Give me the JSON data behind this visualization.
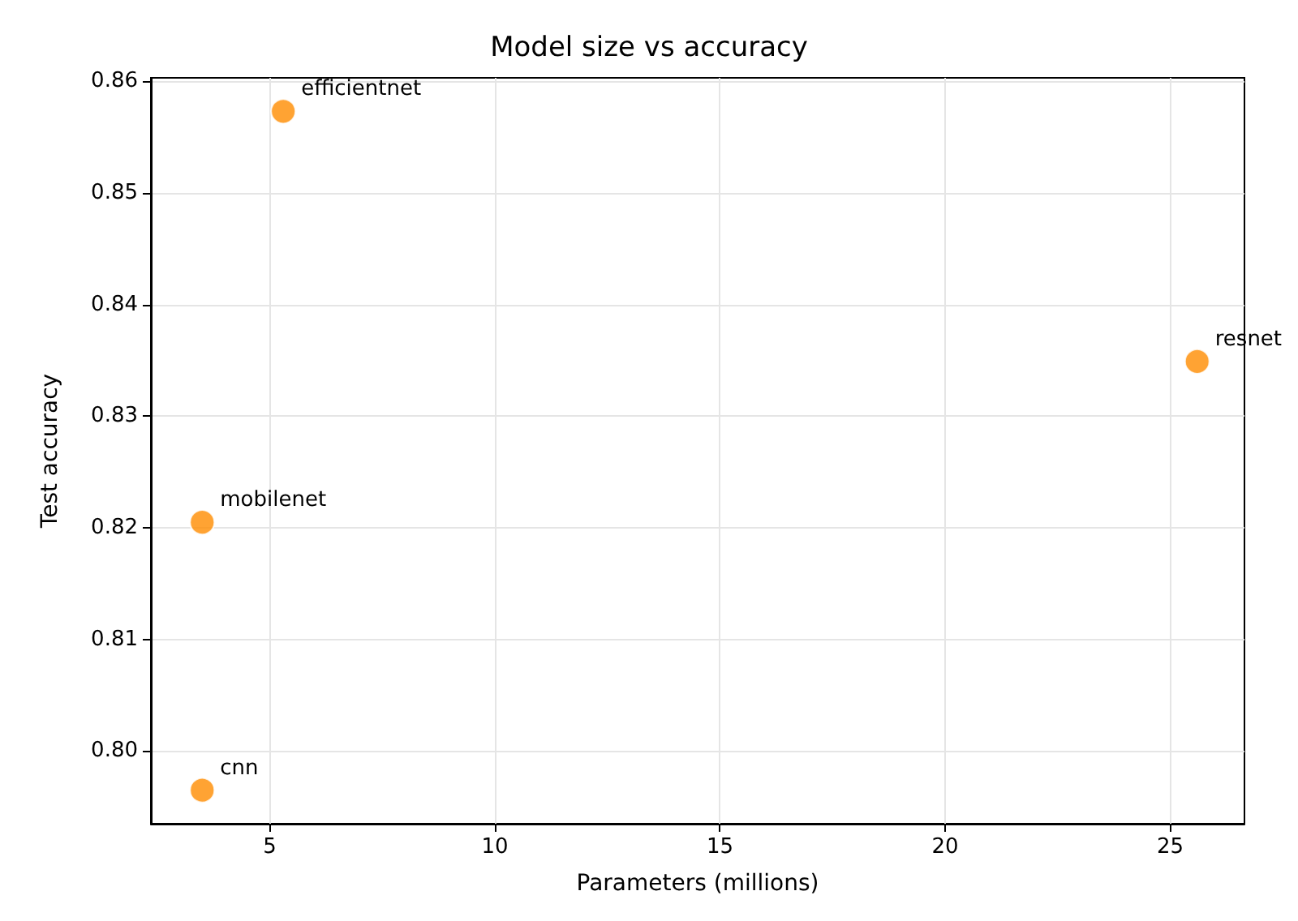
{
  "chart_data": {
    "type": "scatter",
    "title": "Model size vs accuracy",
    "xlabel": "Parameters (millions)",
    "ylabel": "Test accuracy",
    "x": [
      5.3,
      25.6,
      3.5,
      3.5
    ],
    "series": [
      {
        "color": "#ff8c00",
        "values": [
          0.8573,
          0.8349,
          0.8205,
          0.7965
        ]
      }
    ],
    "xlim": [
      2.36,
      26.65
    ],
    "xticks": [
      5,
      10,
      15,
      20,
      25
    ],
    "ylim": [
      0.7935,
      0.8603
    ],
    "yticks": [
      {
        "value": 0.8,
        "label": "0.80"
      },
      {
        "value": 0.81,
        "label": "0.81"
      },
      {
        "value": 0.82,
        "label": "0.82"
      },
      {
        "value": 0.83,
        "label": "0.83"
      },
      {
        "value": 0.84,
        "label": "0.84"
      },
      {
        "value": 0.85,
        "label": "0.85"
      },
      {
        "value": 0.86,
        "label": "0.86"
      }
    ],
    "grid": true,
    "marker": "circle",
    "annotations": [
      {
        "text": "efficientnet",
        "x": 5.3,
        "y": 0.8573
      },
      {
        "text": "resnet",
        "x": 25.6,
        "y": 0.8349
      },
      {
        "text": "mobilenet",
        "x": 3.5,
        "y": 0.8205
      },
      {
        "text": "cnn",
        "x": 3.5,
        "y": 0.7965
      }
    ]
  }
}
